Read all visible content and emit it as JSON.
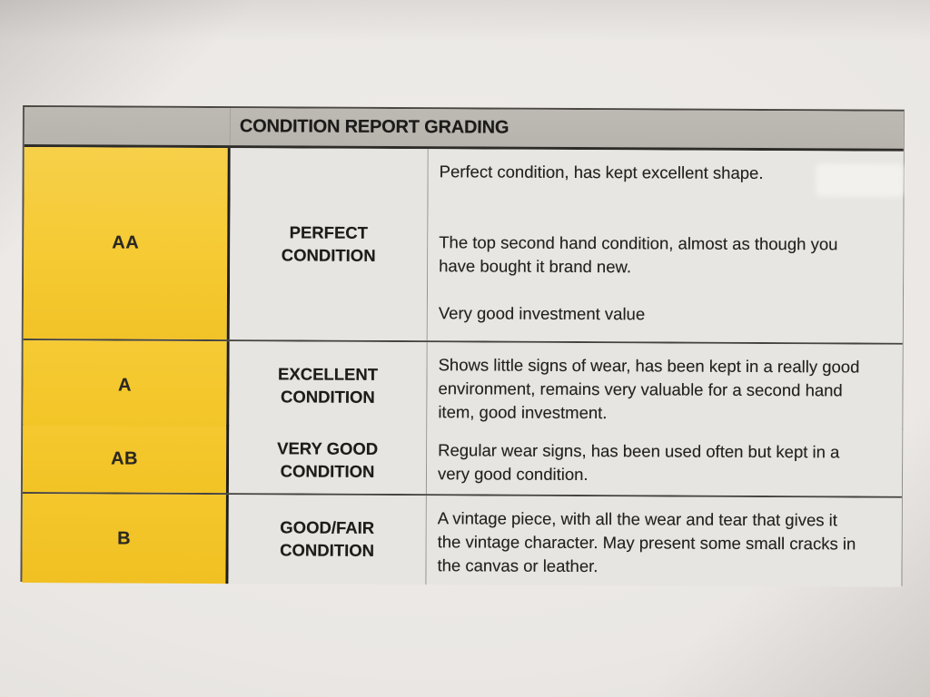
{
  "table": {
    "header": "CONDITION REPORT GRADING",
    "rows": [
      {
        "grade": "AA",
        "condition": "PERFECT CONDITION",
        "description": [
          "Perfect condition, has kept excellent shape.",
          "The top second hand condition, almost as though you have bought it brand new.",
          "Very good investment value"
        ]
      },
      {
        "grade": "A",
        "condition": "EXCELLENT CONDITION",
        "description": [
          "Shows little signs of wear, has been kept in a really good environment, remains very valuable for a second hand item, good investment."
        ]
      },
      {
        "grade": "AB",
        "condition": "VERY GOOD CONDITION",
        "description": [
          "Regular wear signs, has been used often but kept in a very good condition."
        ]
      },
      {
        "grade": "B",
        "condition": "GOOD/FAIR CONDITION",
        "description": [
          "A vintage piece, with all the wear and tear that gives it the vintage character. May present some small cracks in the canvas or leather."
        ]
      }
    ],
    "colors": {
      "grade_column_yellow": "#f4c82f",
      "header_bar_gray": "#b9b5af",
      "cell_background": "#e7e5e1",
      "paper_background": "#eae7e4",
      "border_dark": "#2e2c28"
    }
  }
}
